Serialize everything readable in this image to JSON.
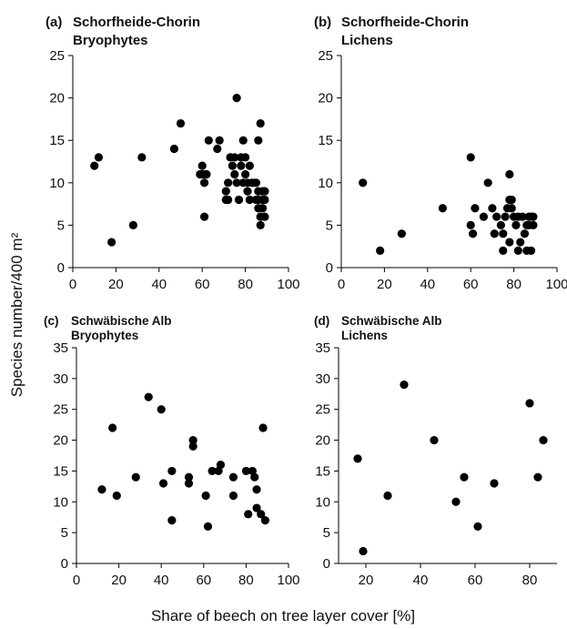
{
  "figure": {
    "ylabel": "Species number/400 m²",
    "xlabel": "Share of beech on tree layer cover [%]"
  },
  "chart_data": [
    {
      "type": "scatter",
      "panel": "(a)",
      "title": "Schorfheide-Chorin",
      "subtitle": "Bryophytes",
      "xlim": [
        0,
        100
      ],
      "ylim": [
        0,
        25
      ],
      "xticks": [
        0,
        20,
        40,
        60,
        80,
        100
      ],
      "yticks": [
        0,
        5,
        10,
        15,
        20,
        25
      ],
      "grid": false,
      "points": [
        [
          10,
          12
        ],
        [
          12,
          13
        ],
        [
          18,
          3
        ],
        [
          28,
          5
        ],
        [
          32,
          13
        ],
        [
          47,
          14
        ],
        [
          50,
          17
        ],
        [
          59,
          11
        ],
        [
          60,
          12
        ],
        [
          60,
          11
        ],
        [
          61,
          10
        ],
        [
          61,
          11
        ],
        [
          61,
          6
        ],
        [
          62,
          11
        ],
        [
          63,
          15
        ],
        [
          67,
          14
        ],
        [
          68,
          15
        ],
        [
          71,
          9
        ],
        [
          71,
          8
        ],
        [
          72,
          10
        ],
        [
          72,
          8
        ],
        [
          73,
          13
        ],
        [
          74,
          12
        ],
        [
          75,
          11
        ],
        [
          75,
          13
        ],
        [
          76,
          10
        ],
        [
          76,
          20
        ],
        [
          77,
          8
        ],
        [
          78,
          13
        ],
        [
          78,
          12
        ],
        [
          79,
          10
        ],
        [
          79,
          15
        ],
        [
          80,
          11
        ],
        [
          80,
          13
        ],
        [
          81,
          9
        ],
        [
          81,
          10
        ],
        [
          82,
          8
        ],
        [
          82,
          12
        ],
        [
          83,
          10
        ],
        [
          84,
          10
        ],
        [
          85,
          8
        ],
        [
          85,
          10
        ],
        [
          86,
          7
        ],
        [
          86,
          15
        ],
        [
          86,
          9
        ],
        [
          86,
          8
        ],
        [
          87,
          17
        ],
        [
          87,
          5
        ],
        [
          87,
          6
        ],
        [
          88,
          8
        ],
        [
          88,
          9
        ],
        [
          88,
          7
        ],
        [
          89,
          6
        ],
        [
          89,
          8
        ],
        [
          89,
          9
        ]
      ]
    },
    {
      "type": "scatter",
      "panel": "(b)",
      "title": "Schorfheide-Chorin",
      "subtitle": "Lichens",
      "xlim": [
        0,
        100
      ],
      "ylim": [
        0,
        25
      ],
      "xticks": [
        0,
        20,
        40,
        60,
        80,
        100
      ],
      "yticks": [
        0,
        5,
        10,
        15,
        20,
        25
      ],
      "grid": false,
      "points": [
        [
          10,
          10
        ],
        [
          18,
          2
        ],
        [
          28,
          4
        ],
        [
          47,
          7
        ],
        [
          60,
          13
        ],
        [
          60,
          5
        ],
        [
          61,
          4
        ],
        [
          62,
          7
        ],
        [
          66,
          6
        ],
        [
          68,
          10
        ],
        [
          70,
          7
        ],
        [
          71,
          4
        ],
        [
          72,
          6
        ],
        [
          74,
          5
        ],
        [
          75,
          4
        ],
        [
          75,
          2
        ],
        [
          76,
          6
        ],
        [
          77,
          7
        ],
        [
          78,
          3
        ],
        [
          78,
          11
        ],
        [
          78,
          8
        ],
        [
          79,
          8
        ],
        [
          79,
          7
        ],
        [
          80,
          6
        ],
        [
          81,
          5
        ],
        [
          82,
          2
        ],
        [
          82,
          6
        ],
        [
          83,
          3
        ],
        [
          84,
          6
        ],
        [
          85,
          4
        ],
        [
          86,
          5
        ],
        [
          86,
          2
        ],
        [
          87,
          6
        ],
        [
          87,
          5
        ],
        [
          88,
          2
        ],
        [
          88,
          6
        ],
        [
          89,
          5
        ],
        [
          89,
          6
        ]
      ]
    },
    {
      "type": "scatter",
      "panel": "(c)",
      "title": "Schwäbische Alb",
      "subtitle": "Bryophytes",
      "xlim": [
        0,
        100
      ],
      "ylim": [
        0,
        35
      ],
      "xticks": [
        0,
        20,
        40,
        60,
        80,
        100
      ],
      "yticks": [
        0,
        5,
        10,
        15,
        20,
        25,
        30,
        35
      ],
      "grid": false,
      "points": [
        [
          12,
          12
        ],
        [
          17,
          22
        ],
        [
          19,
          11
        ],
        [
          28,
          14
        ],
        [
          34,
          27
        ],
        [
          40,
          25
        ],
        [
          41,
          13
        ],
        [
          45,
          15
        ],
        [
          45,
          7
        ],
        [
          53,
          13
        ],
        [
          53,
          14
        ],
        [
          55,
          20
        ],
        [
          55,
          19
        ],
        [
          61,
          11
        ],
        [
          62,
          6
        ],
        [
          64,
          15
        ],
        [
          67,
          15
        ],
        [
          68,
          16
        ],
        [
          74,
          14
        ],
        [
          74,
          11
        ],
        [
          80,
          15
        ],
        [
          81,
          8
        ],
        [
          83,
          15
        ],
        [
          84,
          14
        ],
        [
          85,
          12
        ],
        [
          85,
          9
        ],
        [
          87,
          8
        ],
        [
          88,
          22
        ],
        [
          89,
          7
        ]
      ]
    },
    {
      "type": "scatter",
      "panel": "(d)",
      "title": "Schwäbische Alb",
      "subtitle": "Lichens",
      "xlim": [
        10,
        90
      ],
      "ylim": [
        0,
        35
      ],
      "xticks": [
        20,
        40,
        60,
        80
      ],
      "yticks": [
        0,
        5,
        10,
        15,
        20,
        25,
        30,
        35
      ],
      "grid": false,
      "points": [
        [
          17,
          17
        ],
        [
          19,
          2
        ],
        [
          28,
          11
        ],
        [
          34,
          29
        ],
        [
          45,
          20
        ],
        [
          53,
          10
        ],
        [
          56,
          14
        ],
        [
          61,
          6
        ],
        [
          67,
          13
        ],
        [
          80,
          26
        ],
        [
          83,
          14
        ],
        [
          85,
          20
        ]
      ]
    }
  ]
}
